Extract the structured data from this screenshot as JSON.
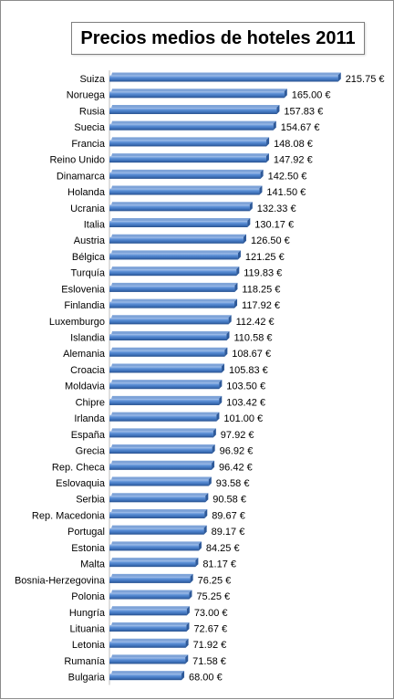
{
  "chart_data": {
    "type": "bar",
    "orientation": "horizontal",
    "title": "Precios medios de hoteles 2011",
    "xlabel": "",
    "ylabel": "",
    "xlim": [
      0,
      230
    ],
    "grid": false,
    "legend": "none",
    "bar_color": "#4a7ebb",
    "categories": [
      "Suiza",
      "Noruega",
      "Rusia",
      "Suecia",
      "Francia",
      "Reino Unido",
      "Dinamarca",
      "Holanda",
      "Ucrania",
      "Italia",
      "Austria",
      "Bélgica",
      "Turquía",
      "Eslovenia",
      "Finlandia",
      "Luxemburgo",
      "Islandia",
      "Alemania",
      "Croacia",
      "Moldavia",
      "Chipre",
      "Irlanda",
      "España",
      "Grecia",
      "Rep. Checa",
      "Eslovaquia",
      "Serbia",
      "Rep. Macedonia",
      "Portugal",
      "Estonia",
      "Malta",
      "Bosnia-Herzegovina",
      "Polonia",
      "Hungría",
      "Lituania",
      "Letonia",
      "Rumanía",
      "Bulgaria"
    ],
    "values": [
      215.75,
      165.0,
      157.83,
      154.67,
      148.08,
      147.92,
      142.5,
      141.5,
      132.33,
      130.17,
      126.5,
      121.25,
      119.83,
      118.25,
      117.92,
      112.42,
      110.58,
      108.67,
      105.83,
      103.5,
      103.42,
      101.0,
      97.92,
      96.92,
      96.42,
      93.58,
      90.58,
      89.67,
      89.17,
      84.25,
      81.17,
      76.25,
      75.25,
      73.0,
      72.67,
      71.92,
      71.58,
      68.0
    ],
    "value_labels": [
      "215.75 €",
      "165.00 €",
      "157.83 €",
      "154.67 €",
      "148.08 €",
      "147.92 €",
      "142.50 €",
      "141.50 €",
      "132.33 €",
      "130.17 €",
      "126.50 €",
      "121.25 €",
      "119.83 €",
      "118.25 €",
      "117.92 €",
      "112.42 €",
      "110.58 €",
      "108.67 €",
      "105.83 €",
      "103.50 €",
      "103.42 €",
      "101.00 €",
      "97.92 €",
      "96.92 €",
      "96.42 €",
      "93.58 €",
      "90.58 €",
      "89.67 €",
      "89.17 €",
      "84.25 €",
      "81.17 €",
      "76.25 €",
      "75.25 €",
      "73.00 €",
      "72.67 €",
      "71.92 €",
      "71.58 €",
      "68.00 €"
    ]
  }
}
